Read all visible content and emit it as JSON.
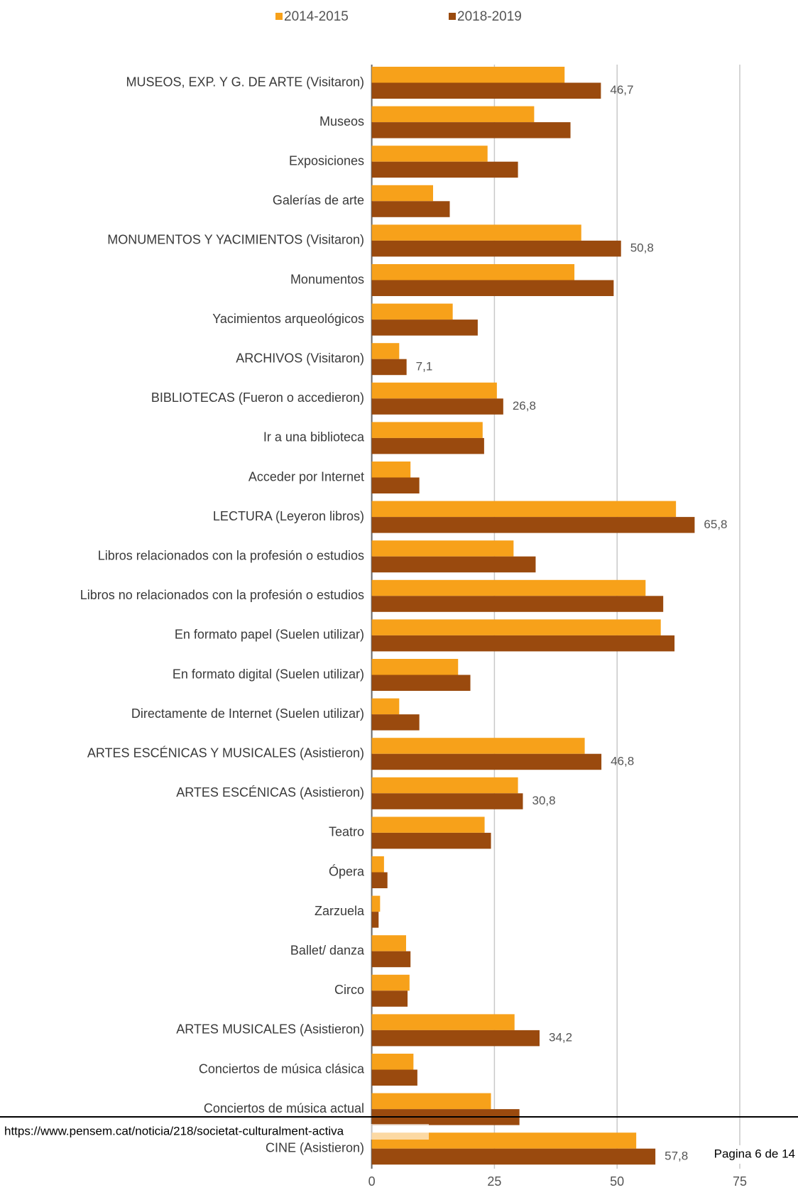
{
  "chart_data": {
    "type": "bar",
    "orientation": "horizontal",
    "categories": [
      "MUSEOS, EXP. Y G. DE ARTE (Visitaron)",
      "Museos",
      "Exposiciones",
      "Galerías de arte",
      "MONUMENTOS Y YACIMIENTOS (Visitaron)",
      "Monumentos",
      "Yacimientos arqueológicos",
      "ARCHIVOS (Visitaron)",
      "BIBLIOTECAS (Fueron o accedieron)",
      "Ir a una biblioteca",
      "Acceder por Internet",
      "LECTURA (Leyeron libros)",
      "Libros relacionados con la profesión o estudios",
      "Libros no relacionados con la profesión o estudios",
      "En formato papel (Suelen utilizar)",
      "En formato digital (Suelen utilizar)",
      "Directamente de Internet (Suelen utilizar)",
      "ARTES ESCÉNICAS Y MUSICALES (Asistieron)",
      "ARTES ESCÉNICAS (Asistieron)",
      "Teatro",
      "Ópera",
      "Zarzuela",
      "Ballet/ danza",
      "Circo",
      "ARTES MUSICALES (Asistieron)",
      "Conciertos de música clásica",
      "Conciertos de música actual",
      "CINE (Asistieron)"
    ],
    "series": [
      {
        "name": "2014-2015",
        "color": "#f7a11a",
        "values": [
          39.3,
          33.1,
          23.6,
          12.5,
          42.7,
          41.3,
          16.5,
          5.6,
          25.5,
          22.6,
          7.9,
          62.0,
          28.9,
          55.8,
          58.9,
          17.6,
          5.6,
          43.4,
          29.8,
          23.0,
          2.5,
          1.7,
          7.0,
          7.7,
          29.1,
          8.5,
          24.3,
          53.9
        ]
      },
      {
        "name": "2018-2019",
        "color": "#9a4a0e",
        "values": [
          46.7,
          40.5,
          29.8,
          15.9,
          50.8,
          49.3,
          21.6,
          7.1,
          26.8,
          22.9,
          9.7,
          65.8,
          33.4,
          59.4,
          61.7,
          20.1,
          9.7,
          46.8,
          30.8,
          24.3,
          3.2,
          1.4,
          7.9,
          7.3,
          34.2,
          9.3,
          30.1,
          57.8
        ],
        "value_labels": [
          "46,7",
          null,
          null,
          null,
          "50,8",
          null,
          null,
          "7,1",
          "26,8",
          null,
          null,
          "65,8",
          null,
          null,
          null,
          null,
          null,
          "46,8",
          "30,8",
          null,
          null,
          null,
          null,
          null,
          "34,2",
          null,
          null,
          "57,8"
        ]
      }
    ],
    "xlim": [
      0,
      75
    ],
    "xticks": [
      0,
      25,
      50,
      75
    ],
    "grid": true,
    "legend": "top"
  },
  "footer": {
    "url": "https://www.pensem.cat/noticia/218/societat-culturalment-activa",
    "page": "Pagina 6 de 14"
  }
}
